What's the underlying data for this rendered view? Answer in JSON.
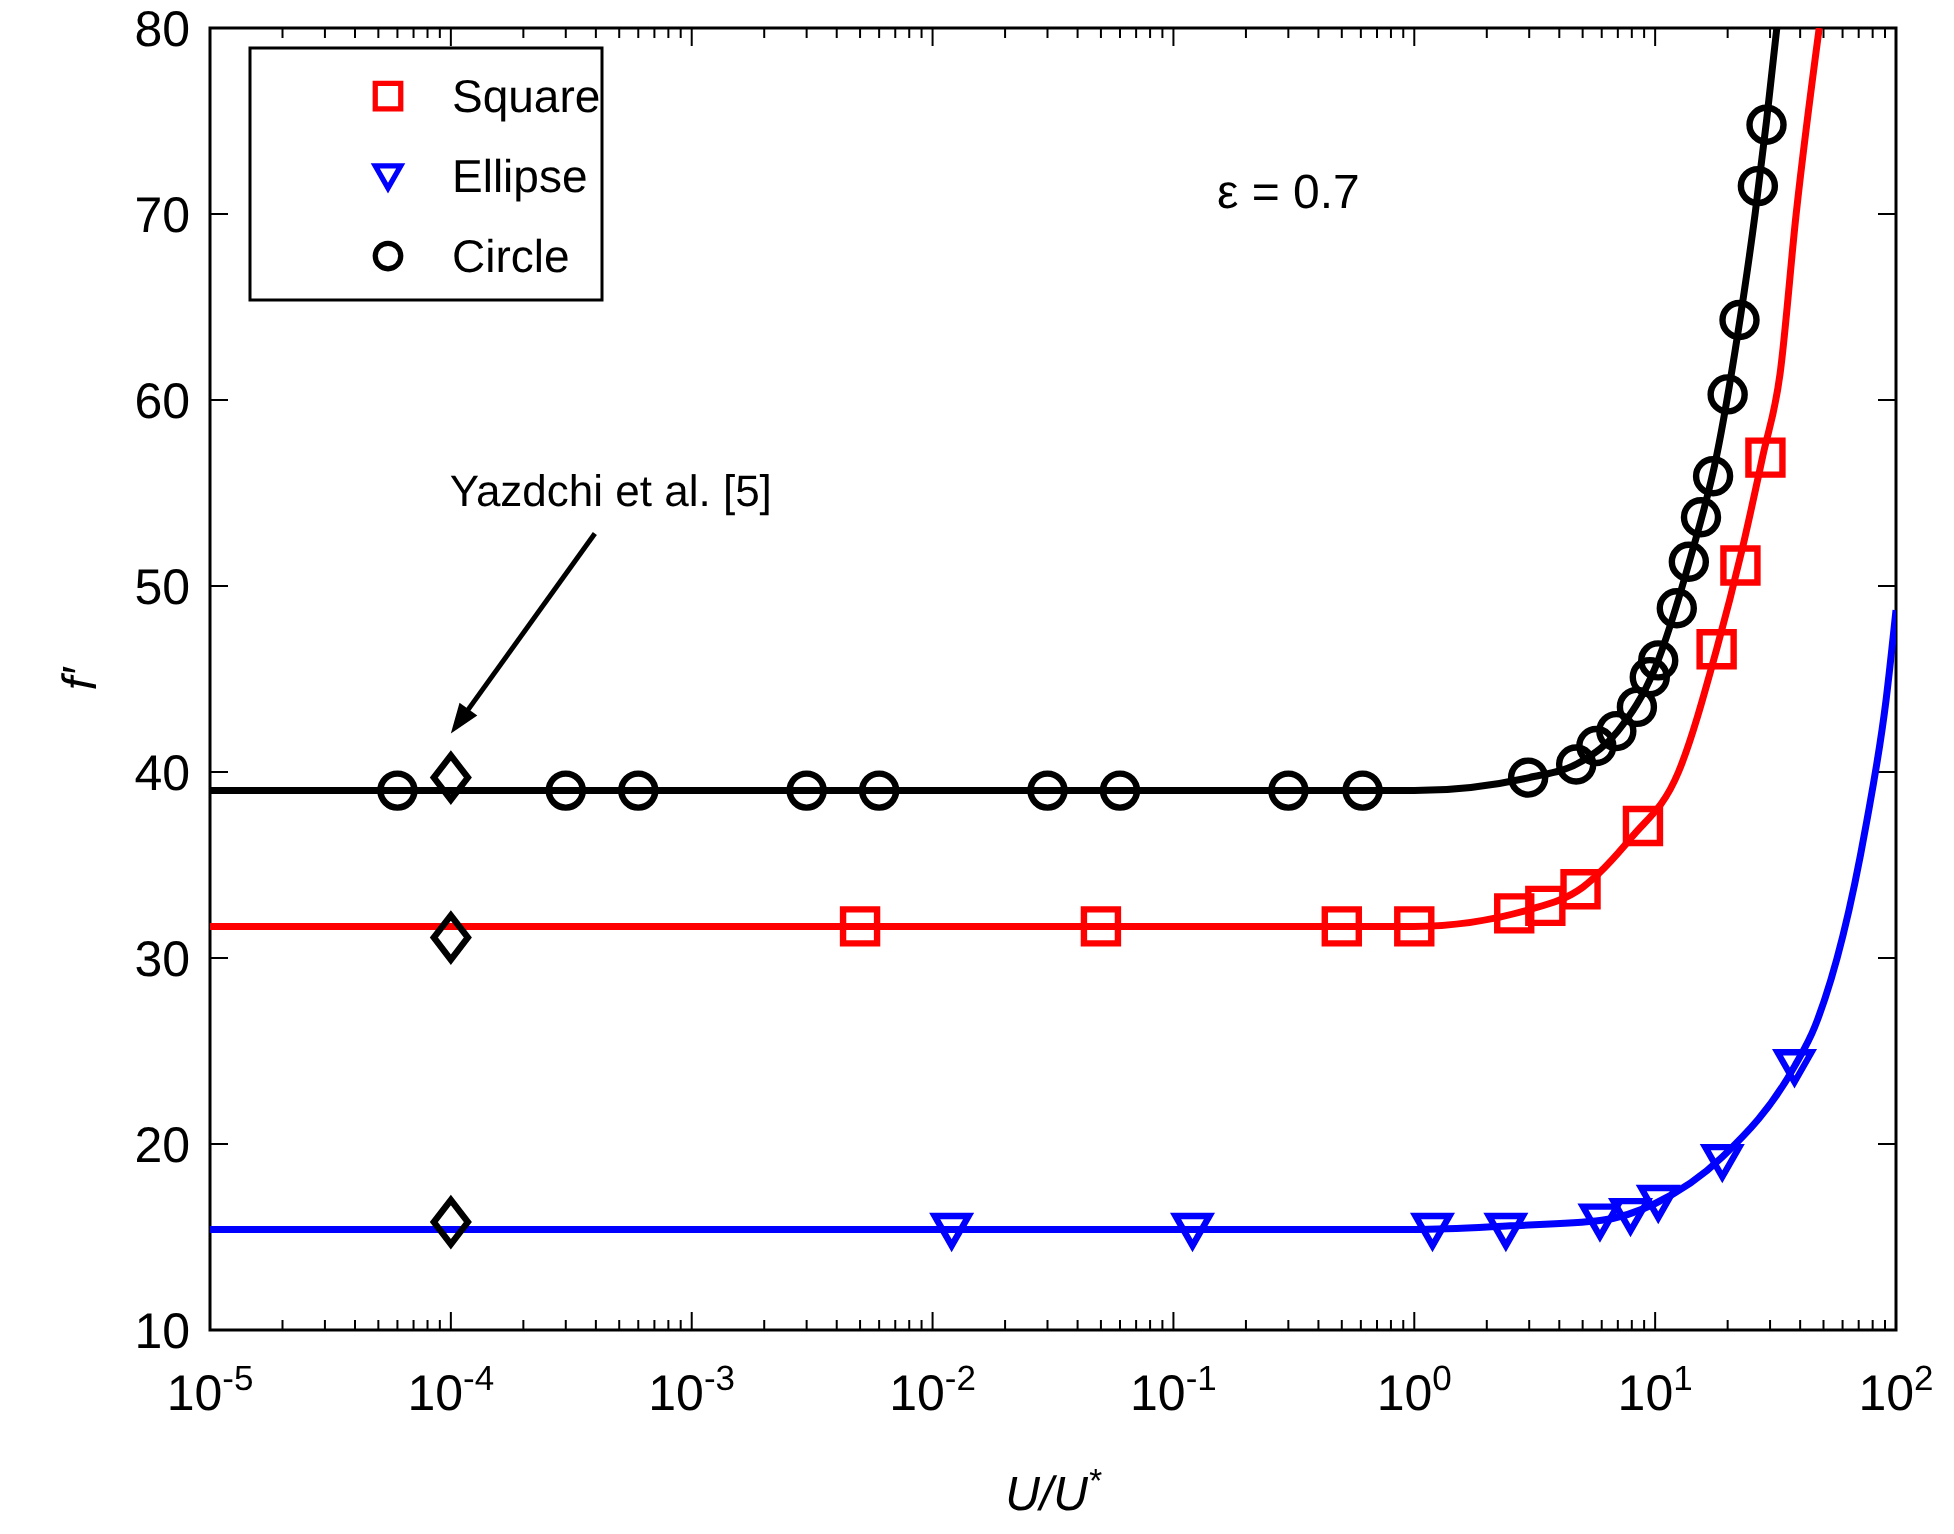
{
  "chart_data": {
    "type": "scatter",
    "xlabel": "U/U$^{*}$",
    "ylabel": "f′",
    "log": "x",
    "xlim": [
      1e-05,
      100
    ],
    "ylim": [
      10,
      80
    ],
    "xticks": [
      {
        "value": 1e-05,
        "label": "10$^{-5}$"
      },
      {
        "value": 0.0001,
        "label": "10$^{-4}$"
      },
      {
        "value": 0.001,
        "label": "10$^{-3}$"
      },
      {
        "value": 0.01,
        "label": "10$^{-2}$"
      },
      {
        "value": 0.1,
        "label": "10$^{-1}$"
      },
      {
        "value": 1,
        "label": "10$^{0}$"
      },
      {
        "value": 10,
        "label": "10$^{1}$"
      },
      {
        "value": 100,
        "label": "10$^{2}$"
      },
      {
        "value": 2e-05,
        "label": null
      },
      {
        "value": 3e-05,
        "label": null
      },
      {
        "value": 4e-05,
        "label": null
      },
      {
        "value": 5e-05,
        "label": null
      },
      {
        "value": 6e-05,
        "label": null
      },
      {
        "value": 7e-05,
        "label": null
      },
      {
        "value": 8e-05,
        "label": null
      },
      {
        "value": 9e-05,
        "label": null
      },
      {
        "value": 0.0002,
        "label": null
      },
      {
        "value": 0.0003,
        "label": null
      },
      {
        "value": 0.0004,
        "label": null
      },
      {
        "value": 0.0005,
        "label": null
      },
      {
        "value": 0.0006,
        "label": null
      },
      {
        "value": 0.0007,
        "label": null
      },
      {
        "value": 0.0008,
        "label": null
      },
      {
        "value": 0.0009,
        "label": null
      },
      {
        "value": 0.002,
        "label": null
      },
      {
        "value": 0.003,
        "label": null
      },
      {
        "value": 0.004,
        "label": null
      },
      {
        "value": 0.005,
        "label": null
      },
      {
        "value": 0.006,
        "label": null
      },
      {
        "value": 0.007,
        "label": null
      },
      {
        "value": 0.008,
        "label": null
      },
      {
        "value": 0.009,
        "label": null
      },
      {
        "value": 0.02,
        "label": null
      },
      {
        "value": 0.03,
        "label": null
      },
      {
        "value": 0.04,
        "label": null
      },
      {
        "value": 0.05,
        "label": null
      },
      {
        "value": 0.06,
        "label": null
      },
      {
        "value": 0.07,
        "label": null
      },
      {
        "value": 0.08,
        "label": null
      },
      {
        "value": 0.09,
        "label": null
      },
      {
        "value": 0.2,
        "label": null
      },
      {
        "value": 0.3,
        "label": null
      },
      {
        "value": 0.4,
        "label": null
      },
      {
        "value": 0.5,
        "label": null
      },
      {
        "value": 0.6,
        "label": null
      },
      {
        "value": 0.7,
        "label": null
      },
      {
        "value": 0.8,
        "label": null
      },
      {
        "value": 0.9,
        "label": null
      },
      {
        "value": 2,
        "label": null
      },
      {
        "value": 3,
        "label": null
      },
      {
        "value": 4,
        "label": null
      },
      {
        "value": 5,
        "label": null
      },
      {
        "value": 6,
        "label": null
      },
      {
        "value": 7,
        "label": null
      },
      {
        "value": 8,
        "label": null
      },
      {
        "value": 9,
        "label": null
      },
      {
        "value": 20,
        "label": null
      },
      {
        "value": 30,
        "label": null
      },
      {
        "value": 40,
        "label": null
      },
      {
        "value": 50,
        "label": null
      },
      {
        "value": 60,
        "label": null
      },
      {
        "value": 70,
        "label": null
      },
      {
        "value": 80,
        "label": null
      },
      {
        "value": 90,
        "label": null
      }
    ],
    "yticks": [
      10,
      20,
      30,
      40,
      50,
      60,
      70,
      80
    ],
    "legend": "top left",
    "annotations": [
      "ε = 0.7",
      "Yazdchi et al. [5]"
    ],
    "series": [
      {
        "type": "line",
        "color": "#000000",
        "marker": "none",
        "x": [
          1e-05,
          1,
          3,
          5,
          7,
          10,
          14,
          18,
          22,
          26,
          29,
          32
        ],
        "values": [
          39,
          39,
          39.7,
          40.6,
          42.2,
          45.6,
          51.5,
          57,
          63.5,
          70,
          75,
          80
        ]
      },
      {
        "type": "line",
        "color": "#ff0000",
        "marker": "none",
        "x": [
          1e-05,
          1,
          3,
          5,
          8,
          12.5,
          18,
          23,
          28,
          33,
          38.5,
          48
        ],
        "values": [
          31.7,
          31.7,
          32.6,
          33.8,
          36.5,
          40,
          46.6,
          52,
          57,
          61.4,
          70,
          80
        ]
      },
      {
        "type": "line",
        "color": "#0000ff",
        "marker": "none",
        "x": [
          1e-05,
          1,
          2.5,
          6,
          10,
          19,
          38,
          46,
          75,
          91,
          100
        ],
        "values": [
          15.4,
          15.4,
          15.6,
          15.9,
          16.8,
          19.3,
          24.2,
          26.3,
          37.1,
          43.9,
          48.7
        ]
      },
      {
        "name": "Square",
        "color": "#ff0000",
        "marker": "square",
        "x": [
          0.005,
          0.05,
          0.5,
          1,
          2.6,
          3.5,
          4.9,
          8.9,
          18,
          22.6,
          28.7
        ],
        "values": [
          31.7,
          31.7,
          31.7,
          31.7,
          32.4,
          32.8,
          33.7,
          37.1,
          46.6,
          51.1,
          56.9
        ]
      },
      {
        "name": "Ellipse",
        "color": "#0000ff",
        "marker": "triangle",
        "x": [
          0.012,
          0.12,
          1.19,
          2.4,
          5.9,
          7.9,
          10.3,
          19,
          37.9
        ],
        "values": [
          15.4,
          15.4,
          15.4,
          15.4,
          15.9,
          16.2,
          16.9,
          19.1,
          24.2
        ]
      },
      {
        "name": "Circle",
        "color": "#000000",
        "marker": "circle",
        "x": [
          6e-05,
          0.0003,
          0.0006,
          0.003,
          0.006,
          0.03,
          0.06,
          0.3,
          0.61,
          2.97,
          4.7,
          5.7,
          6.9,
          8.4,
          9.5,
          10.3,
          12.3,
          13.8,
          15.5,
          17.4,
          20,
          22.4,
          26.7,
          29
        ],
        "values": [
          39,
          39,
          39,
          39,
          39,
          39,
          39,
          39,
          39,
          39.7,
          40.4,
          41.4,
          42.2,
          43.5,
          45.1,
          46,
          48.8,
          51.3,
          53.7,
          55.9,
          60.3,
          64.3,
          71.5,
          74.8
        ]
      },
      {
        "color": "#000000",
        "marker": "diamond",
        "x": [
          0.0001,
          0.0001,
          0.0001
        ],
        "values": [
          39.7,
          31.1,
          15.8
        ]
      }
    ]
  }
}
